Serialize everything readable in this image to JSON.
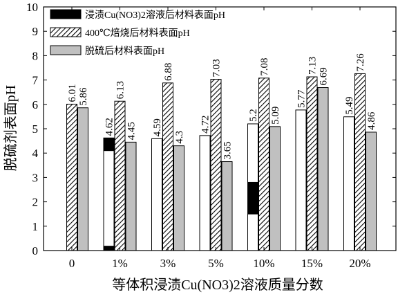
{
  "chart_data": {
    "type": "bar",
    "xlabel": "等体积浸渍Cu(NO3)2溶液质量分数",
    "ylabel": "脱硫剂表面pH",
    "ylim": [
      0,
      10
    ],
    "yticks": [
      0,
      1,
      2,
      3,
      4,
      5,
      6,
      7,
      8,
      9,
      10
    ],
    "categories": [
      "0",
      "1%",
      "3%",
      "5%",
      "10%",
      "15%",
      "20%"
    ],
    "legend_position": "top-left",
    "series": [
      {
        "name": "浸渍Cu(NO3)2溶液后材料表面pH",
        "values": [
          null,
          4.62,
          4.59,
          4.72,
          5.2,
          5.77,
          5.49
        ],
        "labels": [
          "",
          "4.62",
          "4.59",
          "4.72",
          "5.2",
          "5.77",
          "5.49"
        ],
        "fill": "#ffffff",
        "marker_fill": "#000000"
      },
      {
        "name": "400℃焙烧后材料表面pH",
        "values": [
          6.01,
          6.13,
          6.88,
          7.03,
          7.08,
          7.13,
          7.26
        ],
        "labels": [
          "6.01",
          "6.13",
          "6.88",
          "7.03",
          "7.08",
          "7.13",
          "7.26"
        ],
        "fill": "hatch"
      },
      {
        "name": "脱硫后材料表面pH",
        "values": [
          5.86,
          4.45,
          4.3,
          3.65,
          5.09,
          6.69,
          4.86
        ],
        "labels": [
          "5.86",
          "4.45",
          "4.3",
          "3.65",
          "5.09",
          "6.69",
          "4.86"
        ],
        "fill": "#c0c0c0"
      }
    ],
    "annotations": [
      {
        "category": "1%",
        "range": [
          4.1,
          4.62
        ],
        "fill": "#000000"
      },
      {
        "category": "1%",
        "range": [
          0,
          0.18
        ],
        "fill": "#000000"
      },
      {
        "category": "10%",
        "range": [
          1.5,
          2.8
        ],
        "fill": "#000000"
      }
    ]
  }
}
